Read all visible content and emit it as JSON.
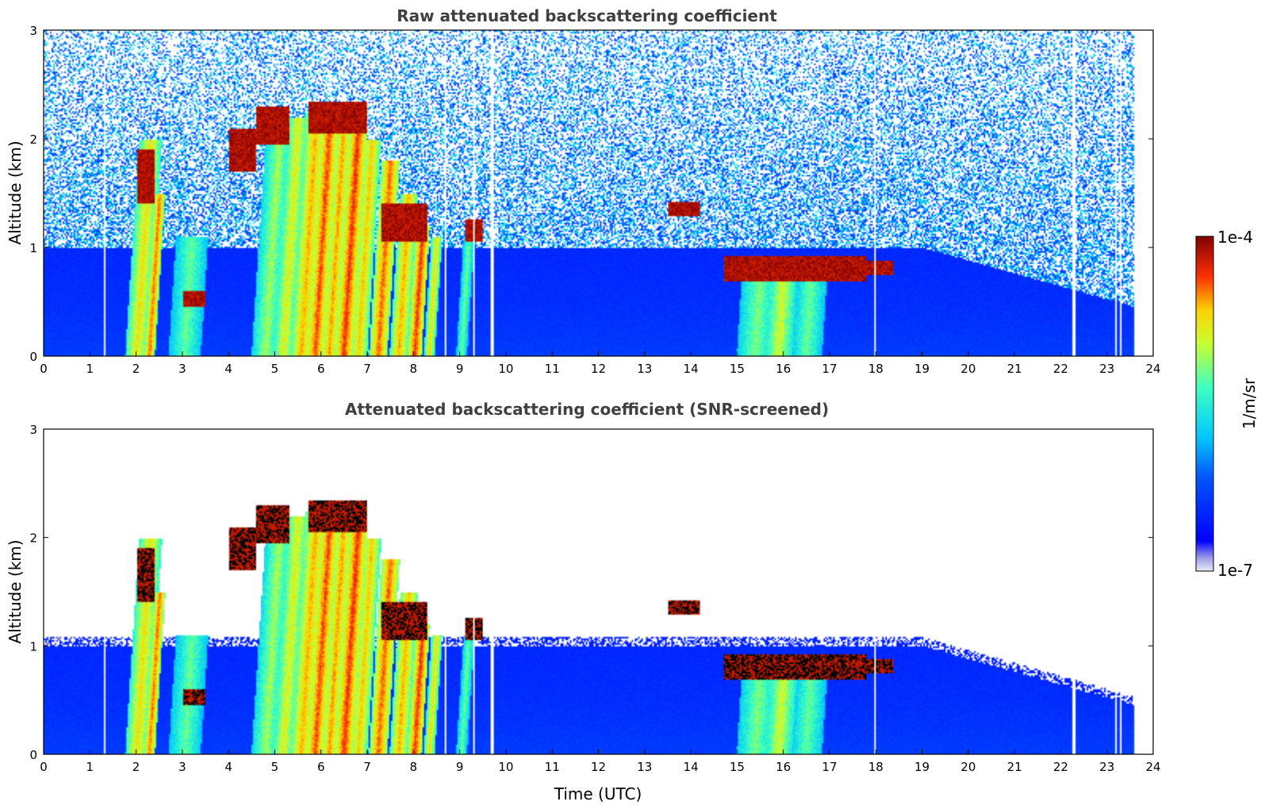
{
  "chart_data": [
    {
      "type": "heatmap",
      "title": "Raw attenuated backscattering coefficient",
      "xlabel": "",
      "ylabel": "Altitude (km)",
      "xlim": [
        0,
        24
      ],
      "ylim": [
        0,
        3
      ],
      "xticks": [
        "0",
        "1",
        "2",
        "3",
        "4",
        "5",
        "6",
        "7",
        "8",
        "9",
        "10",
        "11",
        "12",
        "13",
        "14",
        "15",
        "16",
        "17",
        "18",
        "19",
        "20",
        "21",
        "22",
        "23",
        "24"
      ],
      "yticks": [
        "0",
        "1",
        "2",
        "3"
      ],
      "screened": false
    },
    {
      "type": "heatmap",
      "title": "Attenuated backscattering coefficient (SNR-screened)",
      "xlabel": "Time (UTC)",
      "ylabel": "Altitude (km)",
      "xlim": [
        0,
        24
      ],
      "ylim": [
        0,
        3
      ],
      "xticks": [
        "0",
        "1",
        "2",
        "3",
        "4",
        "5",
        "6",
        "7",
        "8",
        "9",
        "10",
        "11",
        "12",
        "13",
        "14",
        "15",
        "16",
        "17",
        "18",
        "19",
        "20",
        "21",
        "22",
        "23",
        "24"
      ],
      "yticks": [
        "0",
        "1",
        "2",
        "3"
      ],
      "screened": true
    }
  ],
  "colorbar": {
    "label": "1/m/sr",
    "max_label": "1e-4",
    "min_label": "1e-7",
    "range": [
      1e-07,
      0.0001
    ],
    "scale": "log",
    "colormap": "jet"
  },
  "features": {
    "data_end_hour": 23.6,
    "aerosol_top_km": 1.0,
    "fall_streaks": [
      {
        "t": 2.3,
        "top": 2.0,
        "w": 0.25,
        "v": 0.75
      },
      {
        "t": 2.5,
        "top": 1.5,
        "w": 0.12,
        "v": 0.85
      },
      {
        "t": 3.2,
        "top": 1.1,
        "w": 0.35,
        "v": 0.6
      },
      {
        "t": 5.1,
        "top": 2.1,
        "w": 0.3,
        "v": 0.65
      },
      {
        "t": 5.5,
        "top": 2.2,
        "w": 0.25,
        "v": 0.72
      },
      {
        "t": 5.9,
        "top": 2.25,
        "w": 0.25,
        "v": 0.8
      },
      {
        "t": 6.2,
        "top": 2.25,
        "w": 0.2,
        "v": 0.88
      },
      {
        "t": 6.5,
        "top": 2.2,
        "w": 0.18,
        "v": 0.82
      },
      {
        "t": 6.8,
        "top": 2.1,
        "w": 0.2,
        "v": 0.9
      },
      {
        "t": 7.1,
        "top": 2.0,
        "w": 0.2,
        "v": 0.78
      },
      {
        "t": 7.5,
        "top": 1.8,
        "w": 0.2,
        "v": 0.86
      },
      {
        "t": 7.9,
        "top": 1.5,
        "w": 0.2,
        "v": 0.8
      },
      {
        "t": 8.2,
        "top": 1.2,
        "w": 0.15,
        "v": 0.9
      },
      {
        "t": 8.5,
        "top": 1.1,
        "w": 0.12,
        "v": 0.75
      },
      {
        "t": 9.2,
        "top": 1.1,
        "w": 0.12,
        "v": 0.6
      },
      {
        "t": 15.5,
        "top": 0.7,
        "w": 0.4,
        "v": 0.62
      },
      {
        "t": 16.0,
        "top": 0.7,
        "w": 0.3,
        "v": 0.7
      },
      {
        "t": 16.6,
        "top": 0.7,
        "w": 0.35,
        "v": 0.6
      }
    ],
    "cloud_patches": [
      {
        "t0": 2.0,
        "t1": 2.4,
        "z0": 1.4,
        "z1": 1.9
      },
      {
        "t0": 3.0,
        "t1": 3.5,
        "z0": 0.45,
        "z1": 0.6
      },
      {
        "t0": 4.0,
        "t1": 4.6,
        "z0": 1.7,
        "z1": 2.1
      },
      {
        "t0": 4.6,
        "t1": 5.3,
        "z0": 1.95,
        "z1": 2.3
      },
      {
        "t0": 5.7,
        "t1": 7.0,
        "z0": 2.05,
        "z1": 2.35
      },
      {
        "t0": 7.3,
        "t1": 8.3,
        "z0": 1.05,
        "z1": 1.4
      },
      {
        "t0": 9.1,
        "t1": 9.5,
        "z0": 1.05,
        "z1": 1.25
      },
      {
        "t0": 13.5,
        "t1": 14.2,
        "z0": 1.28,
        "z1": 1.42
      },
      {
        "t0": 14.7,
        "t1": 17.8,
        "z0": 0.68,
        "z1": 0.92
      },
      {
        "t0": 17.8,
        "t1": 18.4,
        "z0": 0.75,
        "z1": 0.88
      }
    ],
    "gap_columns": [
      1.3,
      8.7,
      9.3,
      9.7,
      18.0,
      22.3,
      23.2,
      23.3
    ]
  }
}
